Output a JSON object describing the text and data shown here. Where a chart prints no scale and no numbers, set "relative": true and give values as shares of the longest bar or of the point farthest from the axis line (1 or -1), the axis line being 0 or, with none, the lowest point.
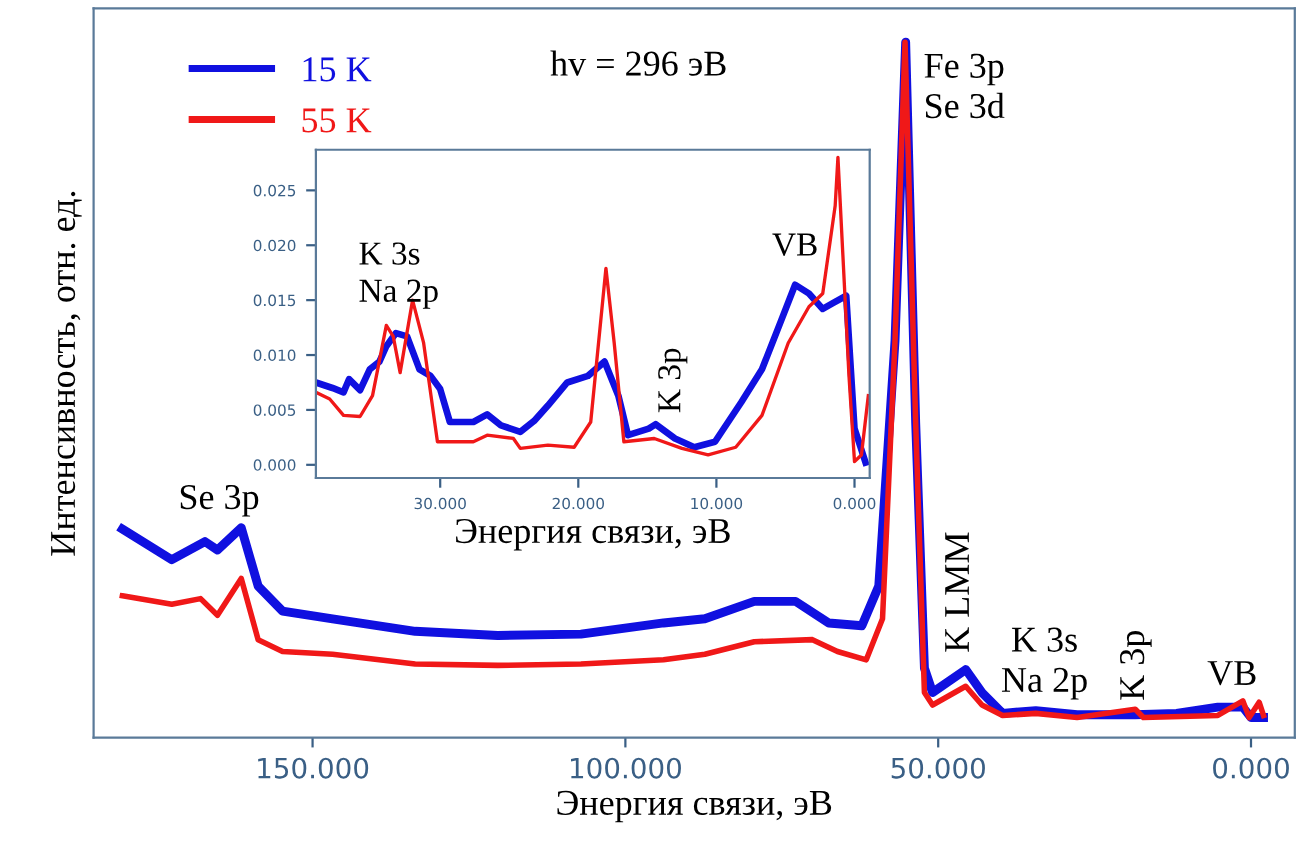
{
  "chart_data": [
    {
      "type": "line",
      "relative": true,
      "xlabel": "Энергия связи, эВ",
      "ylabel": "Интенсивность, отн. ед.",
      "xlim": [
        185,
        -7
      ],
      "xticks": [
        {
          "value": 150,
          "label": "150.000"
        },
        {
          "value": 100,
          "label": "100.000"
        },
        {
          "value": 50,
          "label": "50.000"
        },
        {
          "value": 0,
          "label": "0.000"
        }
      ],
      "legend": "top left",
      "grid": false,
      "series": [
        {
          "name": "15 K",
          "color": "#1010e0",
          "x": [
            180.4,
            172.5,
            167.2,
            165.2,
            161.4,
            158.7,
            154.8,
            146.8,
            133.6,
            120.4,
            107.1,
            93.9,
            87.3,
            79.4,
            72.8,
            67.5,
            62.2,
            59.5,
            56.9,
            55.2,
            53.6,
            52.2,
            50.9,
            45.6,
            43.0,
            39.7,
            34.4,
            27.8,
            18.5,
            11.9,
            5.3,
            1.3,
            0,
            -2
          ],
          "values": [
            0.3,
            0.256,
            0.282,
            0.27,
            0.302,
            0.218,
            0.182,
            0.171,
            0.153,
            0.147,
            0.149,
            0.165,
            0.171,
            0.196,
            0.196,
            0.165,
            0.161,
            0.218,
            0.571,
            1.0,
            0.453,
            0.1,
            0.065,
            0.098,
            0.065,
            0.035,
            0.039,
            0.033,
            0.033,
            0.035,
            0.044,
            0.044,
            0.029,
            0.029
          ]
        },
        {
          "name": "55 K",
          "color": "#f01818",
          "x": [
            180.4,
            172.5,
            167.9,
            165.2,
            161.4,
            158.7,
            154.8,
            146.8,
            133.6,
            120.4,
            107.1,
            93.9,
            87.3,
            79.4,
            70.1,
            66.1,
            61.5,
            58.9,
            56.9,
            55.3,
            53.6,
            52.2,
            50.9,
            45.6,
            43.0,
            39.7,
            34.4,
            27.8,
            18.5,
            17.2,
            5.3,
            1.3,
            0.3,
            -1.3,
            -2
          ],
          "values": [
            0.204,
            0.192,
            0.2,
            0.176,
            0.229,
            0.141,
            0.124,
            0.12,
            0.106,
            0.104,
            0.106,
            0.112,
            0.12,
            0.138,
            0.141,
            0.124,
            0.112,
            0.171,
            0.571,
            1.0,
            0.453,
            0.065,
            0.047,
            0.074,
            0.047,
            0.032,
            0.035,
            0.029,
            0.041,
            0.029,
            0.032,
            0.053,
            0.029,
            0.051,
            0.032
          ]
        }
      ],
      "annotations": [
        "hv = 296 эВ",
        {
          "text": "Fe 3p\nSe 3d",
          "x": 55,
          "y": 1.0
        },
        {
          "text": "Se 3p",
          "x": 161.4,
          "y": 0.302
        },
        {
          "text": "K LMM",
          "x": 45.6,
          "y": 0.098
        },
        {
          "text": "K 3s\nNa 2p",
          "x": 33,
          "y": 0.039
        },
        {
          "text": "K 3p",
          "x": 18.5,
          "y": 0.041
        },
        {
          "text": "VB",
          "x": 3,
          "y": 0.053
        }
      ]
    },
    {
      "type": "line",
      "xlabel": "Энергия связи, эВ",
      "xlim": [
        39,
        -1.1
      ],
      "xticks": [
        {
          "value": 30,
          "label": "30.000"
        },
        {
          "value": 20,
          "label": "20.000"
        },
        {
          "value": 10,
          "label": "10.000"
        },
        {
          "value": 0,
          "label": "0.000"
        }
      ],
      "ylim": [
        -0.0012,
        0.0287
      ],
      "yticks": [
        {
          "value": 0,
          "label": "0.000"
        },
        {
          "value": 0.005,
          "label": "0.005"
        },
        {
          "value": 0.01,
          "label": "0.010"
        },
        {
          "value": 0.015,
          "label": "0.015"
        },
        {
          "value": 0.02,
          "label": "0.020"
        },
        {
          "value": 0.025,
          "label": "0.025"
        }
      ],
      "grid": false,
      "series": [
        {
          "color": "#1010e0",
          "x": [
            39.0,
            37.8,
            37.0,
            36.6,
            35.8,
            35.1,
            34.4,
            33.9,
            33.2,
            32.4,
            31.5,
            30.7,
            30.0,
            29.3,
            27.6,
            26.6,
            25.6,
            24.2,
            23.2,
            22.2,
            20.8,
            19.3,
            18.1,
            17.1,
            16.4,
            14.9,
            14.4,
            13.0,
            11.6,
            10.1,
            8.2,
            6.7,
            5.2,
            4.3,
            3.3,
            2.3,
            1.6,
            0.6,
            0.0,
            -0.8
          ],
          "values": [
            0.0075,
            0.007,
            0.0066,
            0.0078,
            0.0068,
            0.0087,
            0.0094,
            0.0108,
            0.012,
            0.0117,
            0.0087,
            0.0081,
            0.0069,
            0.0039,
            0.0039,
            0.0046,
            0.0036,
            0.003,
            0.004,
            0.0054,
            0.0075,
            0.0081,
            0.0094,
            0.0063,
            0.0027,
            0.0033,
            0.0037,
            0.0024,
            0.0016,
            0.0021,
            0.0057,
            0.0087,
            0.0135,
            0.0164,
            0.0156,
            0.0142,
            0.0147,
            0.0154,
            0.0033,
            0.0002
          ]
        },
        {
          "color": "#f01818",
          "x": [
            39.0,
            38.0,
            37.0,
            35.8,
            34.9,
            33.9,
            33.4,
            32.9,
            32.0,
            31.2,
            30.2,
            27.6,
            26.6,
            24.7,
            24.2,
            22.2,
            20.3,
            19.1,
            18.0,
            17.4,
            16.7,
            14.5,
            12.5,
            10.6,
            8.6,
            6.7,
            4.8,
            3.3,
            2.3,
            1.4,
            1.2,
            0.4,
            0.0,
            -0.5,
            -1.0
          ],
          "values": [
            0.0066,
            0.006,
            0.0045,
            0.0044,
            0.0063,
            0.0127,
            0.0117,
            0.0084,
            0.015,
            0.0111,
            0.0021,
            0.0021,
            0.0027,
            0.0024,
            0.0015,
            0.0018,
            0.0016,
            0.0039,
            0.0179,
            0.0111,
            0.0021,
            0.0024,
            0.0015,
            0.0009,
            0.0016,
            0.0045,
            0.0111,
            0.0144,
            0.0156,
            0.0236,
            0.028,
            0.0081,
            0.0003,
            0.0009,
            0.0063
          ]
        }
      ],
      "annotations": [
        {
          "text": "K 3s\nNa 2p",
          "x": 33.5,
          "y": 0.0127
        },
        {
          "text": "K 3p",
          "x": 15.5,
          "y": 0.0037
        },
        {
          "text": "VB",
          "x": 4.3,
          "y": 0.0164
        }
      ]
    }
  ]
}
